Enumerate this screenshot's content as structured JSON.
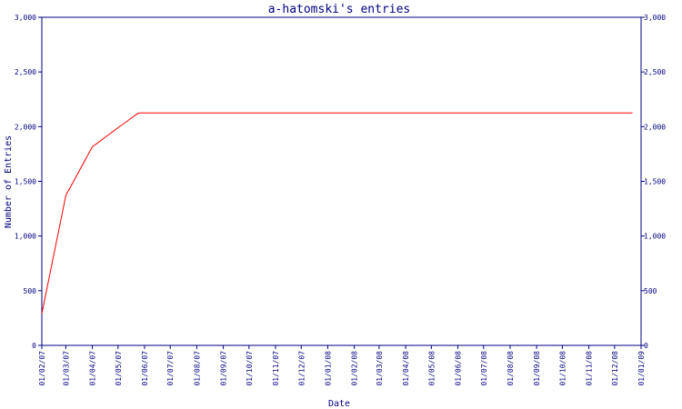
{
  "chart_data": {
    "type": "line",
    "title": "a-hatomski's entries",
    "xlabel": "Date",
    "ylabel": "Number of Entries",
    "ylim": [
      0,
      3000
    ],
    "y_ticks": [
      "0",
      "500",
      "1,000",
      "1,500",
      "2,000",
      "2,500",
      "3,000"
    ],
    "y_tick_values": [
      0,
      500,
      1000,
      1500,
      2000,
      2500,
      3000
    ],
    "x_ticks": [
      "01/02/07",
      "01/03/07",
      "01/04/07",
      "01/05/07",
      "01/06/07",
      "01/07/07",
      "01/08/07",
      "01/09/07",
      "01/10/07",
      "01/11/07",
      "01/12/07",
      "01/01/08",
      "01/02/08",
      "01/03/08",
      "01/04/08",
      "01/05/08",
      "01/06/08",
      "01/07/08",
      "01/08/08",
      "01/09/08",
      "01/10/08",
      "01/11/08",
      "01/12/08",
      "01/01/09"
    ],
    "grid": false,
    "line_color": "#ff0000",
    "axis_color": "#000080",
    "series": [
      {
        "x": [
          "2007-02-01",
          "2007-03-01",
          "2007-04-01",
          "2007-05-01",
          "2007-05-25",
          "2008-12-22"
        ],
        "values": [
          290,
          1370,
          1815,
          1990,
          2125,
          2125
        ]
      }
    ]
  }
}
